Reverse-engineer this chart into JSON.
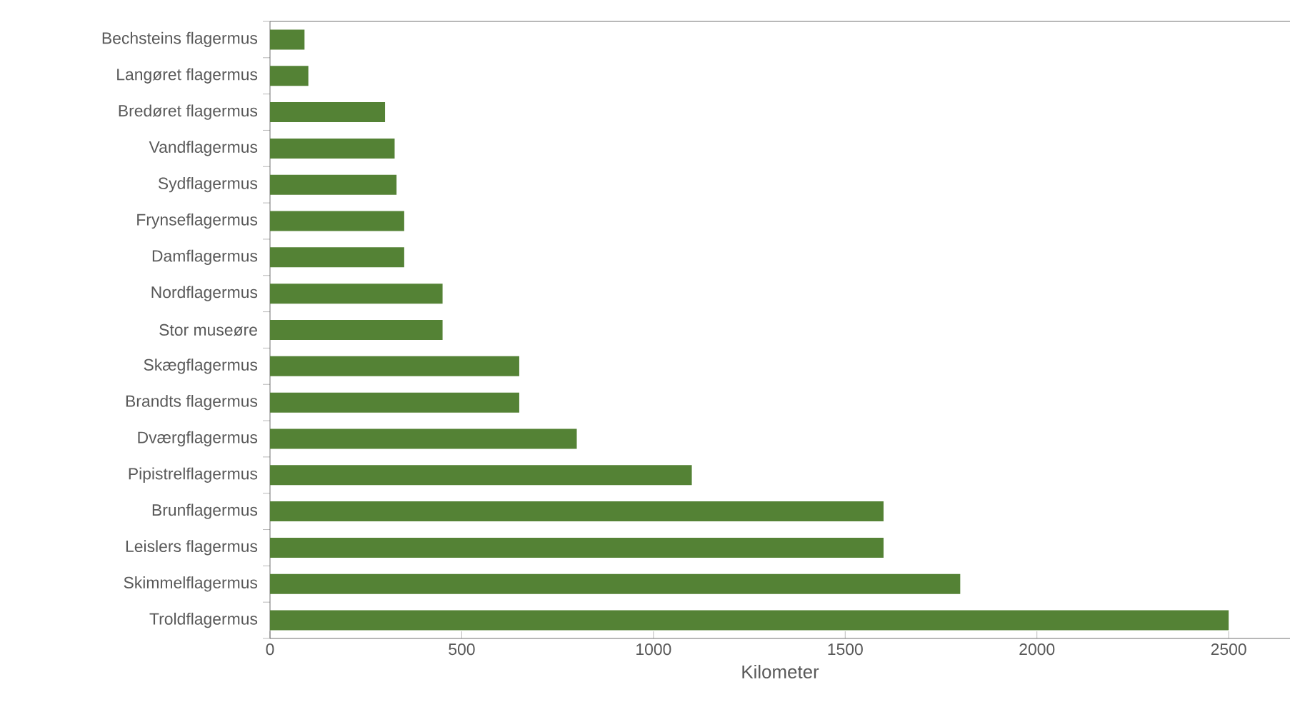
{
  "chart_data": {
    "type": "bar",
    "orientation": "horizontal",
    "xlabel": "Kilometer",
    "categories": [
      "Bechsteins flagermus",
      "Langøret flagermus",
      "Bredøret flagermus",
      "Vandflagermus",
      "Sydflagermus",
      "Frynseflagermus",
      "Damflagermus",
      "Nordflagermus",
      "Stor museøre",
      "Skægflagermus",
      "Brandts flagermus",
      "Dværgflagermus",
      "Pipistrelflagermus",
      "Brunflagermus",
      "Leislers flagermus",
      "Skimmelflagermus",
      "Troldflagermus"
    ],
    "values": [
      90,
      100,
      300,
      325,
      330,
      350,
      350,
      450,
      450,
      650,
      650,
      800,
      1100,
      1600,
      1600,
      1800,
      2500
    ],
    "color": "#548235",
    "xlim": [
      0,
      2660
    ],
    "xticks": [
      0,
      500,
      1000,
      1500,
      2000,
      2500
    ]
  }
}
